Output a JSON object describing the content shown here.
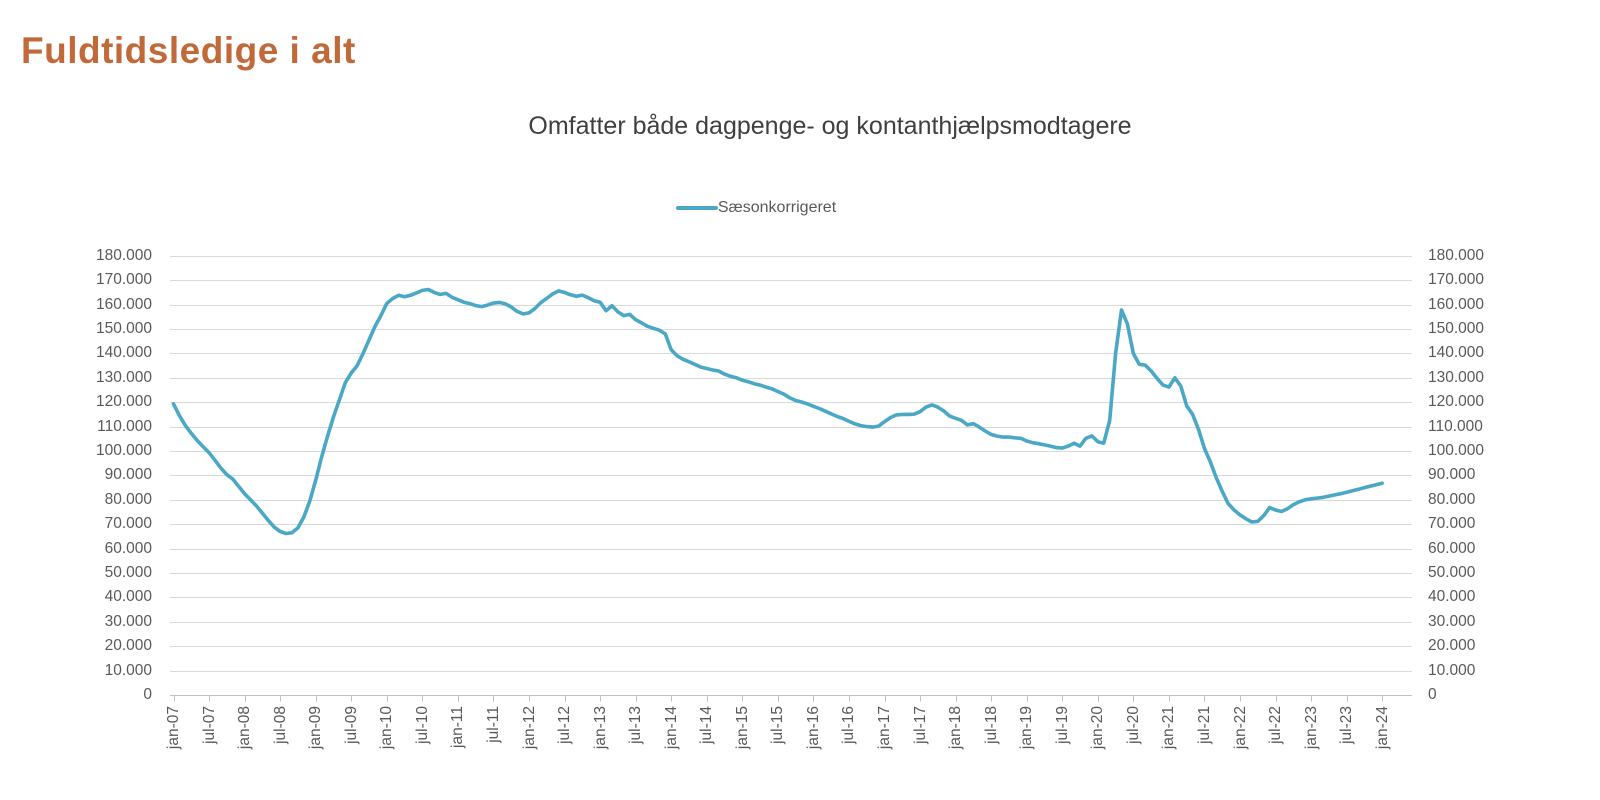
{
  "page": {
    "title": "Fuldtidsledige i alt"
  },
  "legend": {
    "label": "Sæsonkorrigeret"
  },
  "colors": {
    "title_text": "#C16938",
    "subtitle_text": "#3F3F3F",
    "axis_text": "#595959",
    "gridline": "#D9D9D9",
    "axis_line": "#BFBFBF",
    "line": "#4AA8C6"
  },
  "chart_data": {
    "type": "line",
    "title": "Omfatter både dagpenge- og kontanthjælpsmodtagere",
    "x_frequency": "monthly",
    "x_start": "jan-07",
    "x_end": "jan-24",
    "x_tick_labels": [
      "jan-07",
      "jul-07",
      "jan-08",
      "jul-08",
      "jan-09",
      "jul-09",
      "jan-10",
      "jul-10",
      "jan-11",
      "jul-11",
      "jan-12",
      "jul-12",
      "jan-13",
      "jul-13",
      "jan-14",
      "jul-14",
      "jan-15",
      "jul-15",
      "jan-16",
      "jul-16",
      "jan-17",
      "jul-17",
      "jan-18",
      "jul-18",
      "jan-19",
      "jul-19",
      "jan-20",
      "jul-20",
      "jan-21",
      "jul-21",
      "jan-22",
      "jul-22",
      "jan-23",
      "jul-23",
      "jan-24"
    ],
    "y_tick_labels": [
      "0",
      "10.000",
      "20.000",
      "30.000",
      "40.000",
      "50.000",
      "60.000",
      "70.000",
      "80.000",
      "90.000",
      "100.000",
      "110.000",
      "120.000",
      "130.000",
      "140.000",
      "150.000",
      "160.000",
      "170.000",
      "180.000"
    ],
    "y_min": 0,
    "y_max": 180000,
    "grid": true,
    "dual_y_axis": true,
    "legend_position": "top-center",
    "series": [
      {
        "name": "Sæsonkorrigeret",
        "color": "#4AA8C6",
        "values": [
          119300,
          114500,
          110500,
          107200,
          104300,
          101800,
          99300,
          96200,
          93000,
          90300,
          88500,
          85500,
          82500,
          80000,
          77500,
          74500,
          71500,
          68800,
          67000,
          66200,
          66500,
          68500,
          73000,
          79500,
          88000,
          97500,
          106000,
          114000,
          121000,
          128000,
          132000,
          135000,
          140000,
          145500,
          151000,
          155500,
          160500,
          162500,
          163800,
          163200,
          163800,
          164800,
          165800,
          166200,
          165000,
          164200,
          164600,
          163000,
          162000,
          161000,
          160400,
          159600,
          159200,
          159800,
          160600,
          160900,
          160300,
          159000,
          157200,
          156200,
          156600,
          158400,
          160800,
          162600,
          164400,
          165600,
          165000,
          164000,
          163400,
          163900,
          162800,
          161600,
          161000,
          157500,
          159500,
          157000,
          155500,
          156000,
          153800,
          152500,
          151100,
          150300,
          149500,
          148000,
          141500,
          139000,
          137600,
          136600,
          135500,
          134400,
          133800,
          133200,
          132800,
          131500,
          130600,
          130000,
          129000,
          128400,
          127600,
          127000,
          126200,
          125500,
          124400,
          123300,
          121800,
          120700,
          120100,
          119300,
          118300,
          117400,
          116300,
          115200,
          114200,
          113300,
          112200,
          111100,
          110400,
          110000,
          109800,
          110200,
          112000,
          113700,
          114800,
          115000,
          115000,
          115100,
          116100,
          118000,
          118900,
          118000,
          116400,
          114300,
          113400,
          112600,
          110700,
          111200,
          109800,
          108200,
          106800,
          106100,
          105700,
          105700,
          105400,
          105200,
          104100,
          103400,
          103000,
          102500,
          102000,
          101400,
          101200,
          102000,
          103200,
          102000,
          105200,
          106200,
          103800,
          103200,
          112500,
          140000,
          157800,
          152000,
          140000,
          135500,
          135200,
          132800,
          129800,
          127000,
          126200,
          130000,
          126600,
          118500,
          115000,
          108900,
          101000,
          95500,
          89000,
          83500,
          78500,
          75800,
          73800,
          72200,
          70900,
          71200,
          73500,
          76800,
          75800,
          75200,
          76300,
          78000,
          79200,
          80000,
          80400,
          80700,
          81000,
          81500,
          82000,
          82500,
          83100,
          83700,
          84300,
          85000,
          85600,
          86200,
          86800
        ]
      }
    ]
  }
}
